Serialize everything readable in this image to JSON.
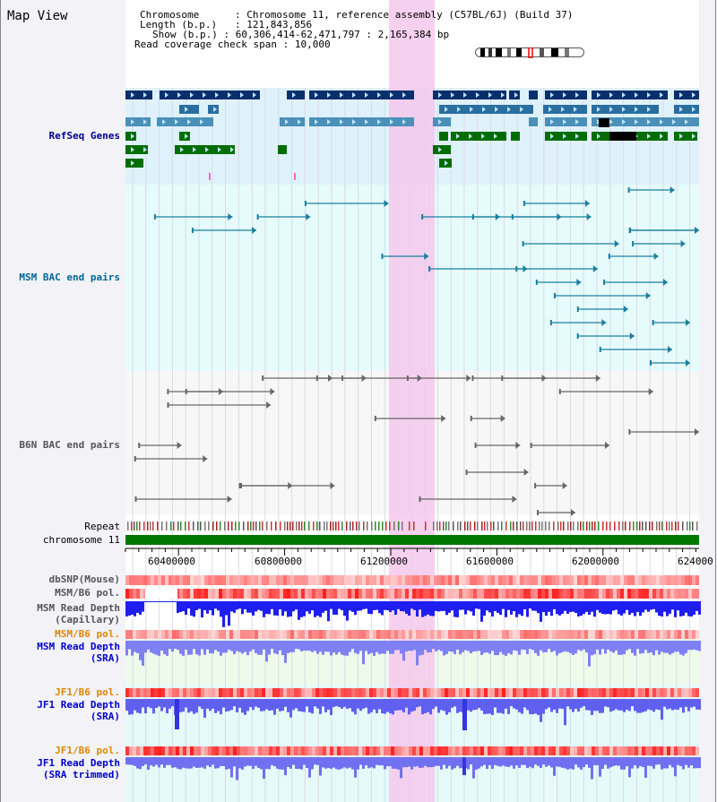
{
  "header": {
    "view_title": "Map View",
    "chromosome_label": "Chromosome",
    "chromosome_value": "Chromosome 11, reference assembly (C57BL/6J) (Build 37)",
    "length_label": "Length (b.p.)",
    "length_value": "121,843,856",
    "show_label": "Show (b.p.)",
    "show_value": "60,306,414-62,471,797 : 2,165,384 bp",
    "coverage_label": "Read coverage check span",
    "coverage_value": "10,000"
  },
  "tracks": {
    "refseq": "RefSeq Genes",
    "msm_bac": "MSM BAC end pairs",
    "b6n_bac": "B6N BAC end pairs",
    "repeat": "Repeat",
    "chromosome": "chromosome 11",
    "dbsnp": "dbSNP(Mouse)",
    "msm_pol_1": "MSM/B6 pol.",
    "msm_depth_cap_1": "MSM Read Depth",
    "msm_depth_cap_2": "(Capillary)",
    "msm_pol_2": "MSM/B6 pol.",
    "msm_depth_sra_1": "MSM Read Depth",
    "msm_depth_sra_2": "(SRA)",
    "jf1_pol_1": "JF1/B6 pol.",
    "jf1_depth_sra_1": "JF1 Read Depth",
    "jf1_depth_sra_2": "(SRA)",
    "jf1_pol_2": "JF1/B6 pol.",
    "jf1_depth_trim_1": "JF1 Read Depth",
    "jf1_depth_trim_2": "(SRA trimmed)"
  },
  "axis_ticks": [
    "60400000",
    "60800000",
    "61200000",
    "61600000",
    "62000000",
    "624000"
  ],
  "colors": {
    "refseq_label": "#00008b",
    "msm_label": "#006699",
    "b6n_label": "#555555",
    "orange_label": "#dd8800",
    "depth_label": "#0000cc",
    "highlight": "#f5c8ec"
  }
}
